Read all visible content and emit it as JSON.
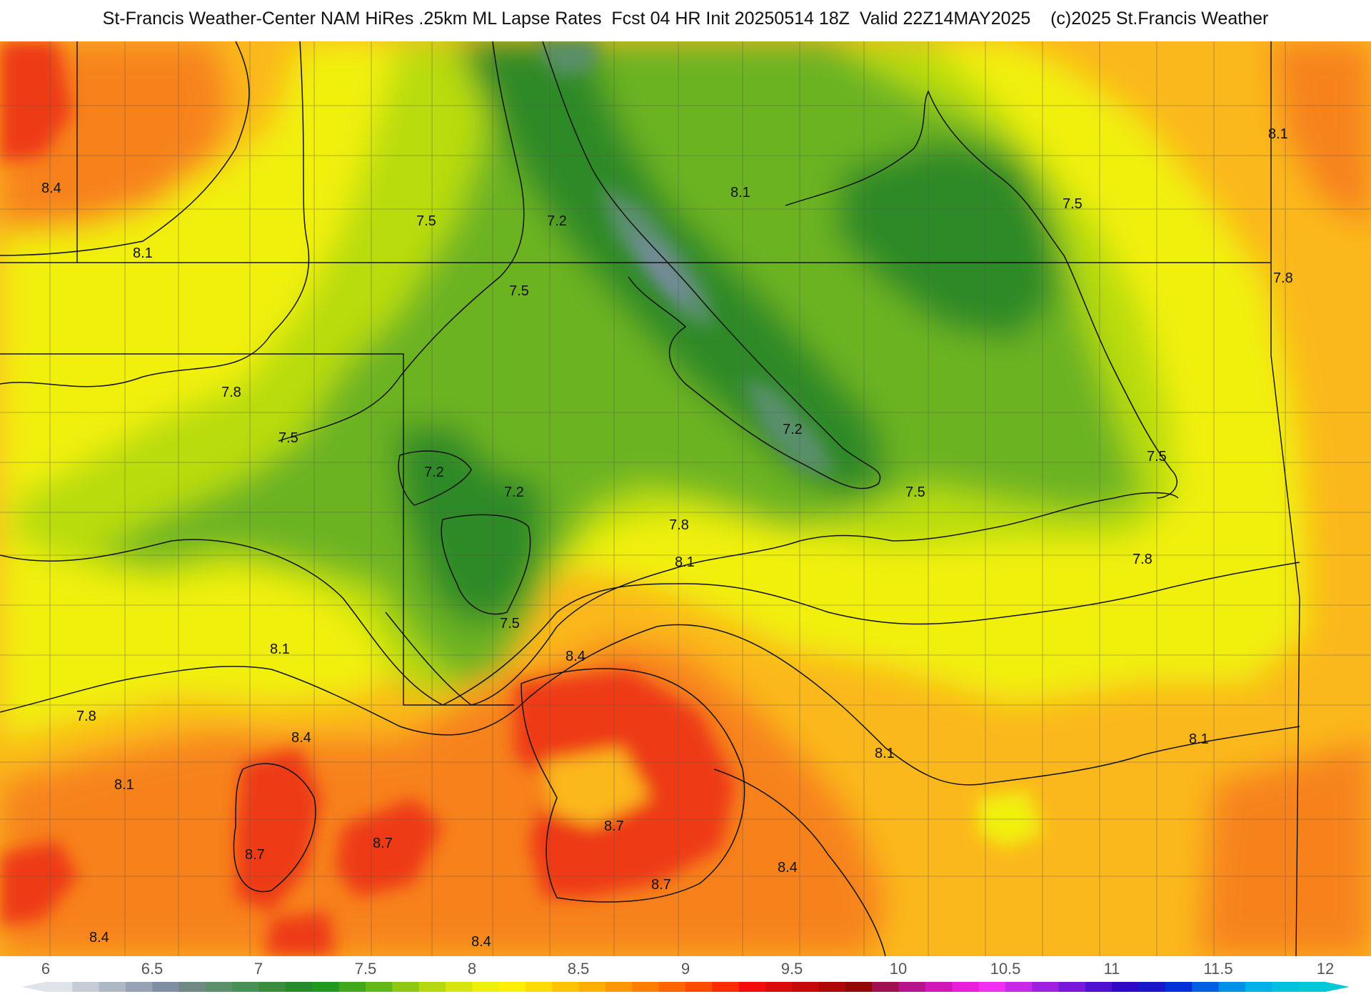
{
  "header": {
    "title": "St-Francis Weather-Center NAM HiRes .25km ML Lapse Rates  Fcst 04 HR Init 20250514 18Z  Valid 22Z14MAY2025    (c)2025 St.Francis Weather"
  },
  "map": {
    "contour_labels": [
      "8.4",
      "8.1",
      "7.5",
      "7.2",
      "7.5",
      "7.8",
      "7.5",
      "7.2",
      "7.2",
      "7.5",
      "7.8",
      "8.1",
      "8.1",
      "7.5",
      "7.2",
      "7.5",
      "7.8",
      "8.1",
      "7.8",
      "8.4",
      "8.4",
      "8.1",
      "8.7",
      "8.7",
      "8.7",
      "8.7",
      "8.4",
      "8.4",
      "8.1",
      "8.4",
      "8.1",
      "7.5",
      "7.8",
      "8.1"
    ],
    "colors": {
      "band_8_7": "#ee3a16",
      "band_8_4": "#f7821c",
      "band_8_1": "#fbb81c",
      "band_7_8": "#f1f00d",
      "band_7_5": "#b8dc0c",
      "band_7_2": "#6cb320",
      "band_6_9": "#2f8a28",
      "band_6_6": "#5a8f6c",
      "band_6_3": "#788aa0"
    }
  },
  "colorbar": {
    "tick_labels": [
      "6",
      "6.5",
      "7",
      "7.5",
      "8",
      "8.5",
      "9",
      "9.5",
      "10",
      "10.5",
      "11",
      "11.5",
      "12"
    ],
    "range": [
      6,
      12
    ],
    "colors": [
      "#dfe3ea",
      "#c5ccd6",
      "#aeb7c4",
      "#97a2b4",
      "#7f8ea2",
      "#6f8a86",
      "#5e8f6b",
      "#4a8f55",
      "#388e3e",
      "#258a2b",
      "#1f9a1f",
      "#3fa81b",
      "#64b818",
      "#8ec814",
      "#b6d80f",
      "#d7e60a",
      "#eef00a",
      "#ffef00",
      "#ffdb00",
      "#ffc400",
      "#ffad00",
      "#ff9600",
      "#ff7e00",
      "#ff6400",
      "#ff4a00",
      "#ff2b00",
      "#f50b0b",
      "#dd0a0a",
      "#c50808",
      "#ad0707",
      "#950606",
      "#a01050",
      "#b8148a",
      "#d018b8",
      "#e820dc",
      "#f030f0",
      "#c828e8",
      "#a020e0",
      "#7818d8",
      "#5010d0",
      "#3008c8",
      "#1818c8",
      "#0030d8",
      "#0060e0",
      "#0090e8",
      "#00b0e8",
      "#00c0e0",
      "#00c8d8"
    ]
  }
}
